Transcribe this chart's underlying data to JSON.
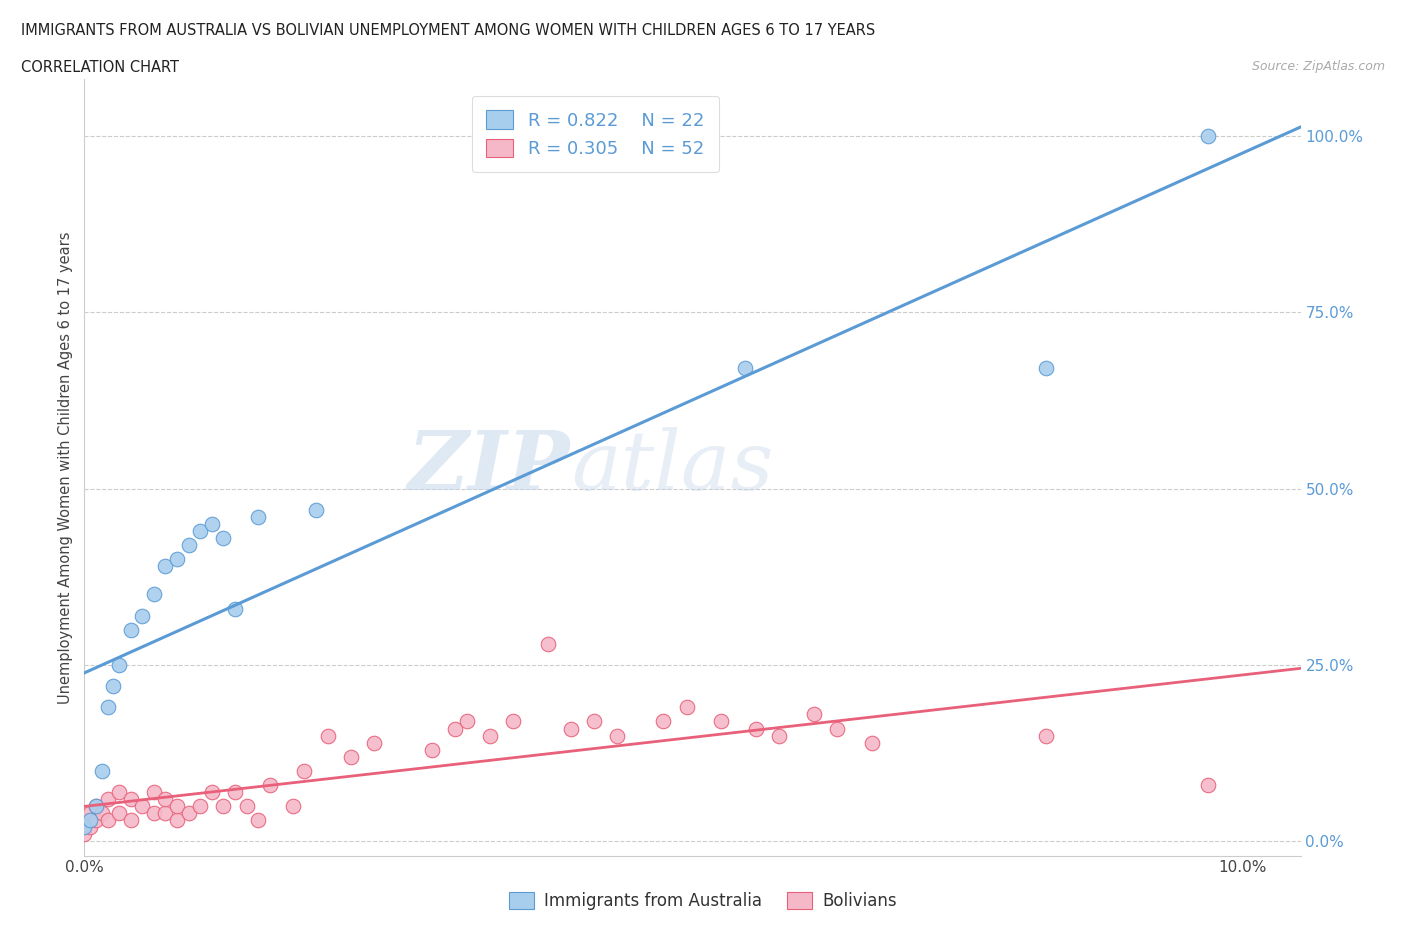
{
  "title1": "IMMIGRANTS FROM AUSTRALIA VS BOLIVIAN UNEMPLOYMENT AMONG WOMEN WITH CHILDREN AGES 6 TO 17 YEARS",
  "title2": "CORRELATION CHART",
  "source": "Source: ZipAtlas.com",
  "ylabel": "Unemployment Among Women with Children Ages 6 to 17 years",
  "xlim": [
    0.0,
    0.105
  ],
  "ylim": [
    -0.02,
    1.08
  ],
  "yticks": [
    0.0,
    0.25,
    0.5,
    0.75,
    1.0
  ],
  "ytick_labels": [
    "0.0%",
    "25.0%",
    "50.0%",
    "75.0%",
    "100.0%"
  ],
  "xticks": [
    0.0,
    0.02,
    0.04,
    0.06,
    0.08,
    0.1
  ],
  "xtick_labels": [
    "0.0%",
    "",
    "",
    "",
    "",
    "10.0%"
  ],
  "r_australia": 0.822,
  "n_australia": 22,
  "r_bolivian": 0.305,
  "n_bolivian": 52,
  "color_australia": "#A8CEED",
  "color_bolivian": "#F5B8C8",
  "edge_color_australia": "#5B9BD5",
  "edge_color_bolivian": "#E8607A",
  "line_color_australia": "#5B9BD5",
  "line_color_bolivian": "#E8607A",
  "watermark_zip": "ZIP",
  "watermark_atlas": "atlas",
  "aus_x": [
    0.0,
    0.0005,
    0.001,
    0.0015,
    0.002,
    0.0025,
    0.003,
    0.004,
    0.005,
    0.006,
    0.007,
    0.008,
    0.009,
    0.01,
    0.011,
    0.012,
    0.013,
    0.015,
    0.02,
    0.057,
    0.083,
    0.097
  ],
  "aus_y": [
    0.02,
    0.03,
    0.05,
    0.1,
    0.19,
    0.22,
    0.25,
    0.3,
    0.32,
    0.35,
    0.39,
    0.4,
    0.42,
    0.44,
    0.45,
    0.43,
    0.33,
    0.46,
    0.47,
    0.67,
    0.67,
    1.0
  ],
  "bol_x": [
    0.0,
    0.0,
    0.0005,
    0.0005,
    0.001,
    0.001,
    0.0015,
    0.002,
    0.002,
    0.003,
    0.003,
    0.004,
    0.004,
    0.005,
    0.006,
    0.006,
    0.007,
    0.007,
    0.008,
    0.008,
    0.009,
    0.01,
    0.011,
    0.012,
    0.013,
    0.014,
    0.015,
    0.016,
    0.018,
    0.019,
    0.021,
    0.023,
    0.025,
    0.03,
    0.032,
    0.033,
    0.035,
    0.037,
    0.04,
    0.042,
    0.044,
    0.046,
    0.05,
    0.052,
    0.055,
    0.058,
    0.06,
    0.063,
    0.065,
    0.068,
    0.083,
    0.097
  ],
  "bol_y": [
    0.01,
    0.03,
    0.02,
    0.04,
    0.03,
    0.05,
    0.04,
    0.03,
    0.06,
    0.04,
    0.07,
    0.03,
    0.06,
    0.05,
    0.04,
    0.07,
    0.04,
    0.06,
    0.03,
    0.05,
    0.04,
    0.05,
    0.07,
    0.05,
    0.07,
    0.05,
    0.03,
    0.08,
    0.05,
    0.1,
    0.15,
    0.12,
    0.14,
    0.13,
    0.16,
    0.17,
    0.15,
    0.17,
    0.28,
    0.16,
    0.17,
    0.15,
    0.17,
    0.19,
    0.17,
    0.16,
    0.15,
    0.18,
    0.16,
    0.14,
    0.15,
    0.08
  ]
}
